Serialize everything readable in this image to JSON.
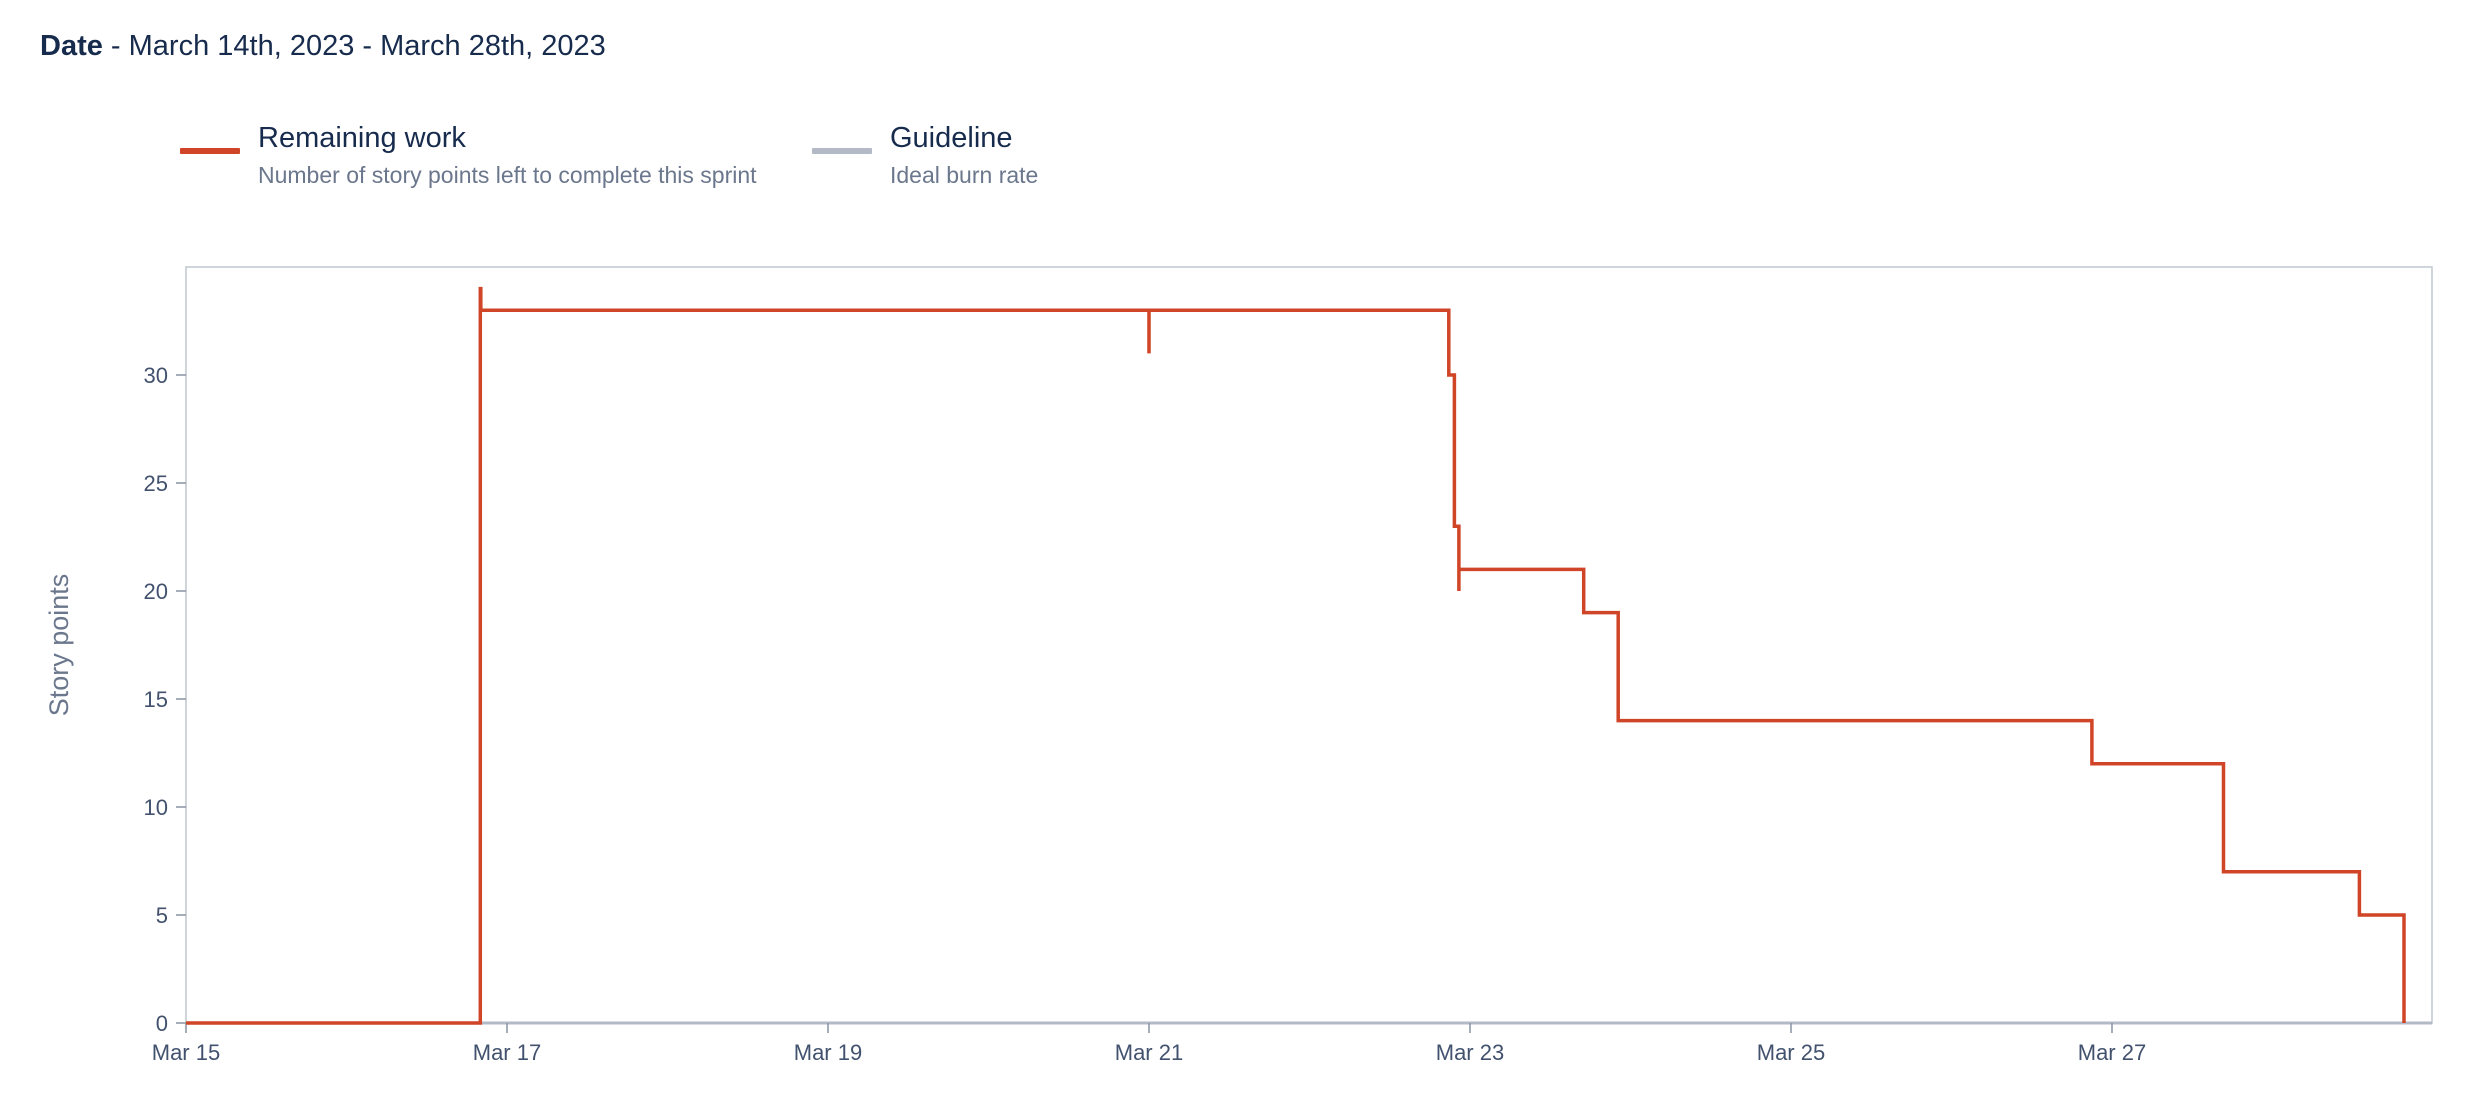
{
  "header": {
    "date_label": "Date",
    "date_range": " - March 14th, 2023 - March 28th, 2023"
  },
  "legend": [
    {
      "title": "Remaining work",
      "description": "Number of story points left to complete this sprint",
      "color": "#d04427"
    },
    {
      "title": "Guideline",
      "description": "Ideal burn rate",
      "color": "#b3bac5"
    }
  ],
  "chart_data": {
    "type": "line",
    "step": true,
    "ylabel": "Story points",
    "xlabel": "",
    "ylim": [
      0,
      35
    ],
    "xlim": [
      "2023-03-15",
      "2023-03-29"
    ],
    "y_ticks": [
      0,
      5,
      10,
      15,
      20,
      25,
      30
    ],
    "x_ticks": [
      "Mar 15",
      "Mar 17",
      "Mar 19",
      "Mar 21",
      "Mar 23",
      "Mar 25",
      "Mar 27"
    ],
    "grid": false,
    "legend_position": "top-left",
    "series": [
      {
        "name": "Remaining work",
        "color": "#d04427",
        "points": [
          [
            "2023-03-15T00:00",
            0
          ],
          [
            "2023-03-16T20:00",
            0
          ],
          [
            "2023-03-16T20:00",
            34
          ],
          [
            "2023-03-16T20:05",
            34
          ],
          [
            "2023-03-16T20:05",
            33
          ],
          [
            "2023-03-21T00:00",
            33
          ],
          [
            "2023-03-21T00:00",
            31
          ],
          [
            "2023-03-21T00:00",
            33
          ],
          [
            "2023-03-22T20:50",
            33
          ],
          [
            "2023-03-22T20:50",
            30
          ],
          [
            "2023-03-22T21:40",
            30
          ],
          [
            "2023-03-22T21:40",
            23
          ],
          [
            "2023-03-22T22:20",
            23
          ],
          [
            "2023-03-22T22:20",
            20
          ],
          [
            "2023-03-22T22:20",
            21
          ],
          [
            "2023-03-23T17:00",
            21
          ],
          [
            "2023-03-23T17:00",
            19
          ],
          [
            "2023-03-23T22:10",
            19
          ],
          [
            "2023-03-23T22:10",
            14
          ],
          [
            "2023-03-26T21:00",
            14
          ],
          [
            "2023-03-26T21:00",
            12
          ],
          [
            "2023-03-27T16:40",
            12
          ],
          [
            "2023-03-27T16:40",
            7
          ],
          [
            "2023-03-28T13:00",
            7
          ],
          [
            "2023-03-28T13:00",
            5
          ],
          [
            "2023-03-28T19:40",
            5
          ],
          [
            "2023-03-28T19:40",
            0
          ]
        ]
      },
      {
        "name": "Guideline",
        "color": "#b3bac5",
        "points": []
      }
    ]
  }
}
